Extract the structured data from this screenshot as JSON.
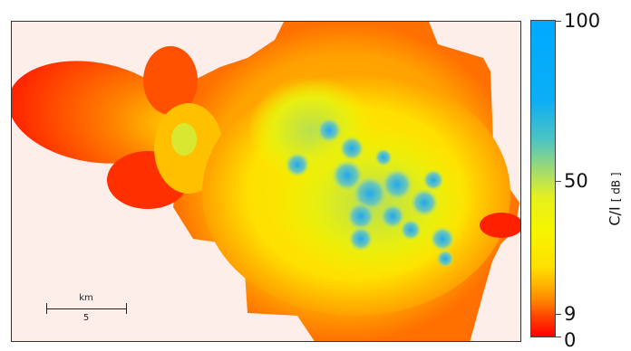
{
  "scale_bar": {
    "unit": "km",
    "length": "5"
  },
  "colorbar": {
    "title": "C/I",
    "unit": "[ dB ]",
    "ticks": [
      {
        "value": 100,
        "label": "100"
      },
      {
        "value": 50,
        "label": "50"
      },
      {
        "value": 9,
        "label": "9"
      },
      {
        "value": 0,
        "label": "0"
      }
    ],
    "colors": {
      "high": "#00aaff",
      "mid": "#f5f500",
      "low": "#ff0000"
    }
  },
  "map": {
    "background_color": "#fdeeea"
  }
}
